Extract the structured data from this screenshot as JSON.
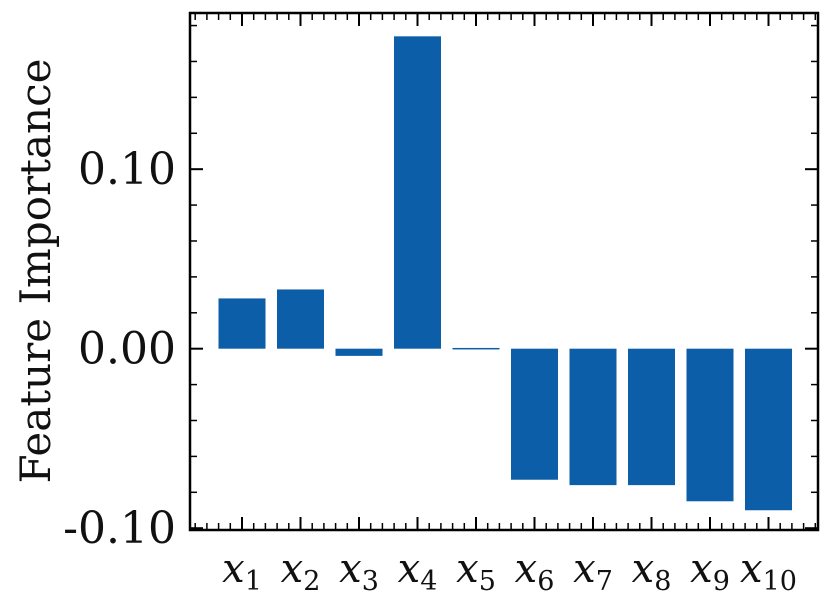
{
  "chart_data": {
    "type": "bar",
    "title": "",
    "xlabel": "",
    "ylabel": "Feature Importance",
    "categories": [
      {
        "base": "x",
        "sub": "1"
      },
      {
        "base": "x",
        "sub": "2"
      },
      {
        "base": "x",
        "sub": "3"
      },
      {
        "base": "x",
        "sub": "4"
      },
      {
        "base": "x",
        "sub": "5"
      },
      {
        "base": "x",
        "sub": "6"
      },
      {
        "base": "x",
        "sub": "7"
      },
      {
        "base": "x",
        "sub": "8"
      },
      {
        "base": "x",
        "sub": "9"
      },
      {
        "base": "x",
        "sub": "10"
      }
    ],
    "values": [
      0.028,
      0.033,
      -0.004,
      0.174,
      -0.0005,
      -0.073,
      -0.076,
      -0.076,
      -0.085,
      -0.09
    ],
    "ylim": [
      -0.101,
      0.187
    ],
    "yticks": [
      -0.1,
      0.0,
      0.1
    ],
    "ytick_labels": [
      "-0.10",
      "0.00",
      "0.10"
    ],
    "bar_color": "#0d5ea8",
    "grid": false,
    "legend": "none"
  }
}
